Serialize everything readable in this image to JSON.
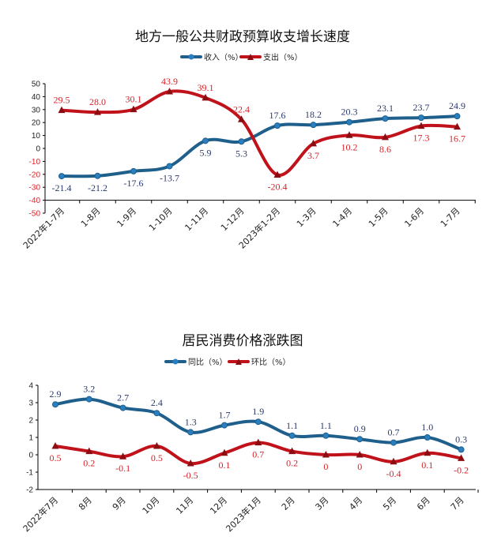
{
  "chart_data": [
    {
      "type": "line",
      "title": "地方一般公共财政预算收支增长速度",
      "categories": [
        "2022年1-7月",
        "1-8月",
        "1-9月",
        "1-10月",
        "1-11月",
        "1-12月",
        "2023年1-2月",
        "1-3月",
        "1-4月",
        "1-5月",
        "1-6月",
        "1-7月"
      ],
      "series": [
        {
          "name": "收入（%）",
          "color": "#1f5f8b",
          "marker": "circle",
          "values": [
            -21.4,
            -21.2,
            -17.6,
            -13.7,
            5.9,
            5.3,
            17.6,
            18.2,
            20.3,
            23.1,
            23.7,
            24.9
          ],
          "labels": [
            "-21.4",
            "-21.2",
            "-17.6",
            "-13.7",
            "5.9",
            "5.3",
            "17.6",
            "18.2",
            "20.3",
            "23.1",
            "23.7",
            "24.9"
          ]
        },
        {
          "name": "支出（%）",
          "color": "#c0121a",
          "marker": "triangle",
          "values": [
            29.5,
            28.0,
            30.1,
            43.9,
            39.1,
            22.4,
            -20.4,
            3.7,
            10.2,
            8.6,
            17.3,
            16.7
          ],
          "labels": [
            "29.5",
            "28.0",
            "30.1",
            "43.9",
            "39.1",
            "22.4",
            "-20.4",
            "3.7",
            "10.2",
            "8.6",
            "17.3",
            "16.7"
          ]
        }
      ],
      "ylim": [
        -50,
        50
      ],
      "yticks": [
        "50",
        "40",
        "30",
        "20",
        "10",
        "0",
        "-10",
        "-20",
        "-30",
        "-40",
        "-50"
      ],
      "legend": "top-center",
      "grid": false
    },
    {
      "type": "line",
      "title": "居民消费价格涨跌图",
      "categories": [
        "2022年7月",
        "8月",
        "9月",
        "10月",
        "11月",
        "12月",
        "2023年1月",
        "2月",
        "3月",
        "4月",
        "5月",
        "6月",
        "7月"
      ],
      "series": [
        {
          "name": "同比（%）",
          "color": "#1f5f8b",
          "marker": "circle",
          "values": [
            2.9,
            3.2,
            2.7,
            2.4,
            1.3,
            1.7,
            1.9,
            1.1,
            1.1,
            0.9,
            0.7,
            1.0,
            0.3
          ],
          "labels": [
            "2.9",
            "3.2",
            "2.7",
            "2.4",
            "1.3",
            "1.7",
            "1.9",
            "1.1",
            "1.1",
            "0.9",
            "0.7",
            "1.0",
            "0.3"
          ]
        },
        {
          "name": "环比（%）",
          "color": "#c0121a",
          "marker": "triangle",
          "values": [
            0.5,
            0.2,
            -0.1,
            0.5,
            -0.5,
            0.1,
            0.7,
            0.2,
            0,
            0,
            -0.4,
            0.1,
            -0.2
          ],
          "labels": [
            "0.5",
            "0.2",
            "-0.1",
            "0.5",
            "-0.5",
            "0.1",
            "0.7",
            "0.2",
            "0",
            "0",
            "-0.4",
            "0.1",
            "-0.2"
          ]
        }
      ],
      "ylim": [
        -2,
        4
      ],
      "yticks": [
        "4",
        "3",
        "2",
        "1",
        "0",
        "-1",
        "-2"
      ],
      "legend": "top-center",
      "grid": false
    }
  ]
}
